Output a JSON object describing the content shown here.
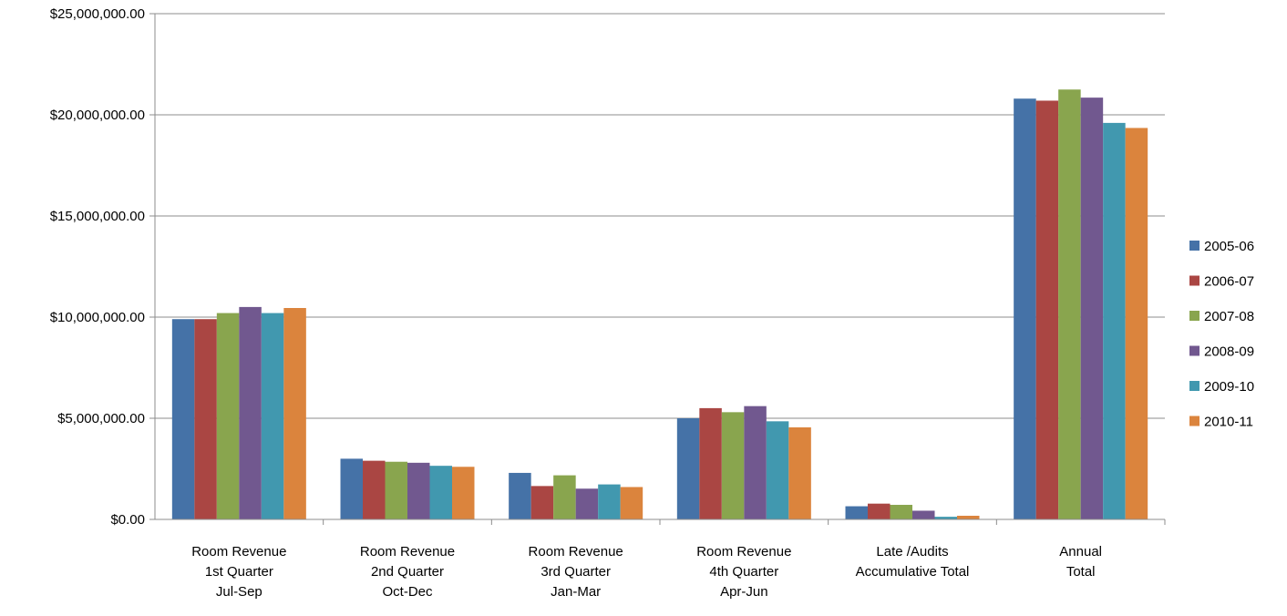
{
  "chart_data": {
    "type": "bar",
    "title": "",
    "xlabel": "",
    "ylabel": "",
    "ylim": [
      0,
      25000000
    ],
    "yticks": [
      0,
      5000000,
      10000000,
      15000000,
      20000000,
      25000000
    ],
    "ytick_labels": [
      "$0.00",
      "$5,000,000.00",
      "$10,000,000.00",
      "$15,000,000.00",
      "$20,000,000.00",
      "$25,000,000.00"
    ],
    "grid": true,
    "legend_position": "right",
    "categories": [
      [
        "Room Revenue",
        "1st Quarter",
        "Jul-Sep"
      ],
      [
        "Room Revenue",
        "2nd Quarter",
        "Oct-Dec"
      ],
      [
        "Room Revenue",
        "3rd Quarter",
        "Jan-Mar"
      ],
      [
        "Room Revenue",
        "4th Quarter",
        "Apr-Jun"
      ],
      [
        "Late /Audits",
        "Accumulative Total"
      ],
      [
        "Annual",
        "Total"
      ]
    ],
    "series": [
      {
        "name": "2005-06",
        "color": "#4572A7",
        "values": [
          9900000,
          3000000,
          2300000,
          5000000,
          650000,
          20800000
        ]
      },
      {
        "name": "2006-07",
        "color": "#AA4643",
        "values": [
          9900000,
          2900000,
          1650000,
          5500000,
          780000,
          20700000
        ]
      },
      {
        "name": "2007-08",
        "color": "#89A54E",
        "values": [
          10200000,
          2850000,
          2180000,
          5300000,
          720000,
          21250000
        ]
      },
      {
        "name": "2008-09",
        "color": "#71588F",
        "values": [
          10500000,
          2800000,
          1520000,
          5600000,
          430000,
          20850000
        ]
      },
      {
        "name": "2009-10",
        "color": "#4198AF",
        "values": [
          10200000,
          2650000,
          1730000,
          4850000,
          130000,
          19600000
        ]
      },
      {
        "name": "2010-11",
        "color": "#DB843D",
        "values": [
          10450000,
          2600000,
          1600000,
          4550000,
          180000,
          19350000
        ]
      }
    ]
  }
}
